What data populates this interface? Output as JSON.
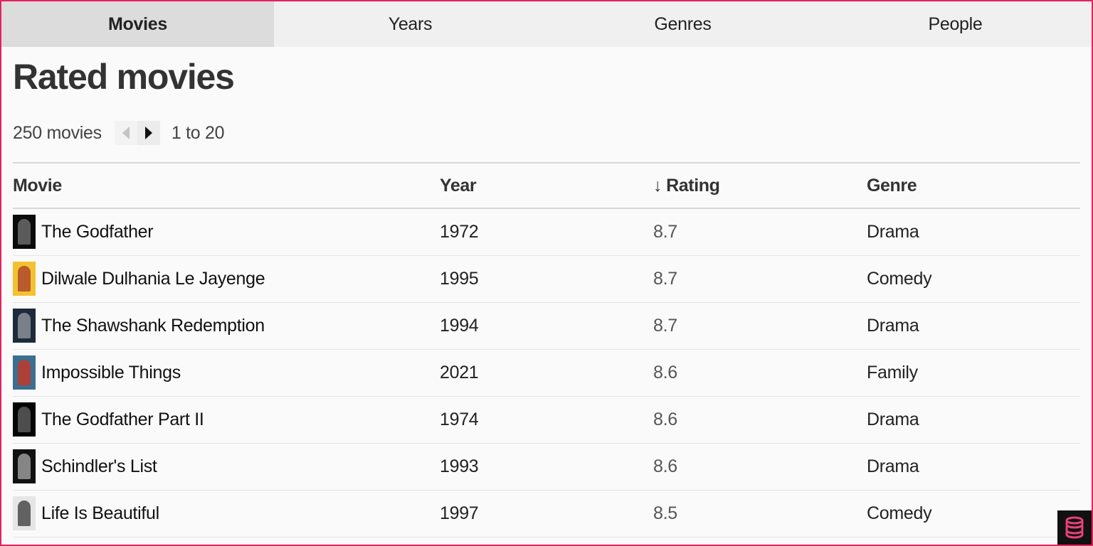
{
  "tabs": [
    {
      "label": "Movies",
      "active": true
    },
    {
      "label": "Years",
      "active": false
    },
    {
      "label": "Genres",
      "active": false
    },
    {
      "label": "People",
      "active": false
    }
  ],
  "page": {
    "title": "Rated movies"
  },
  "pager": {
    "count_text": "250 movies",
    "range_text": "1 to 20",
    "prev_icon": "triangle-left-icon",
    "next_icon": "triangle-right-icon"
  },
  "table": {
    "columns": [
      {
        "label": "Movie",
        "sort_icon": ""
      },
      {
        "label": "Year",
        "sort_icon": ""
      },
      {
        "label": "Rating",
        "sort_icon": "↓"
      },
      {
        "label": "Genre",
        "sort_icon": ""
      }
    ],
    "rows": [
      {
        "title": "The Godfather",
        "year": "1972",
        "rating": "8.7",
        "genre": "Drama",
        "poster_colors": [
          "#0b0b0b",
          "#6a6a6a"
        ]
      },
      {
        "title": "Dilwale Dulhania Le Jayenge",
        "year": "1995",
        "rating": "8.7",
        "genre": "Comedy",
        "poster_colors": [
          "#f2c230",
          "#b0492a"
        ]
      },
      {
        "title": "The Shawshank Redemption",
        "year": "1994",
        "rating": "8.7",
        "genre": "Drama",
        "poster_colors": [
          "#1c2a3a",
          "#8a8f98"
        ]
      },
      {
        "title": "Impossible Things",
        "year": "2021",
        "rating": "8.6",
        "genre": "Family",
        "poster_colors": [
          "#3c6e8f",
          "#c0392b"
        ]
      },
      {
        "title": "The Godfather Part II",
        "year": "1974",
        "rating": "8.6",
        "genre": "Drama",
        "poster_colors": [
          "#050505",
          "#5a5a5a"
        ]
      },
      {
        "title": "Schindler's List",
        "year": "1993",
        "rating": "8.6",
        "genre": "Drama",
        "poster_colors": [
          "#111111",
          "#9a9a9a"
        ]
      },
      {
        "title": "Life Is Beautiful",
        "year": "1997",
        "rating": "8.5",
        "genre": "Comedy",
        "poster_colors": [
          "#e6e6e6",
          "#4a4a4a"
        ]
      }
    ]
  },
  "colors": {
    "frame_border": "#e0245e",
    "active_tab": "#dcdcdc",
    "tab_bar": "#f0f0f0",
    "badge_accent": "#e8407a"
  },
  "corner_badge": {
    "icon": "database-stack-icon"
  }
}
